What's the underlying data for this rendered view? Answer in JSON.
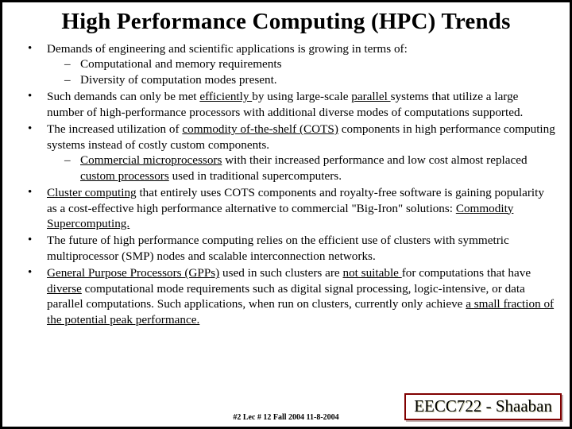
{
  "title": "High Performance Computing (HPC) Trends",
  "bullets": {
    "b1": "Demands of engineering and scientific applications is growing in terms of:",
    "b1s1": "Computational and memory requirements",
    "b1s2": "Diversity of computation modes present.",
    "b2a": "Such demands can only be met ",
    "b2u1": "efficiently ",
    "b2b": " by using large-scale ",
    "b2u2": "parallel ",
    "b2c": "systems that utilize a large number of high-performance processors with additional diverse modes of computations supported.",
    "b3a": "The increased utilization of ",
    "b3u1": "commodity of-the-shelf (COTS)",
    "b3b": " components in high performance computing  systems instead of costly custom components.",
    "b3s1u": "Commercial microprocessors",
    "b3s1a": " with their increased performance and low cost almost replaced ",
    "b3s1u2": "custom processors",
    "b3s1b": " used in traditional supercomputers.",
    "b4u1": "Cluster computing",
    "b4a": " that entirely uses COTS components and royalty-free software is gaining popularity as a cost-effective high performance alternative to commercial \"Big-Iron\" solutions:   ",
    "b4u2": "Commodity Supercomputing.",
    "b5": "The future of high performance computing relies on the efficient use of clusters with symmetric multiprocessor (SMP) nodes and scalable interconnection networks.",
    "b6u1": "General Purpose Processors (GPPs)",
    "b6a": " used in such clusters are ",
    "b6u2": "not suitable ",
    "b6b": "for computations that have ",
    "b6u3": "diverse",
    "b6c": " computational mode requirements such as digital signal processing,  logic-intensive, or data parallel computations.   Such applications, when run on clusters,  currently only achieve ",
    "b6u4": "a small fraction of the potential peak performance."
  },
  "footer": {
    "course": "EECC722 - Shaaban",
    "lec": "#2  Lec # 12   Fall 2004  11-8-2004"
  }
}
